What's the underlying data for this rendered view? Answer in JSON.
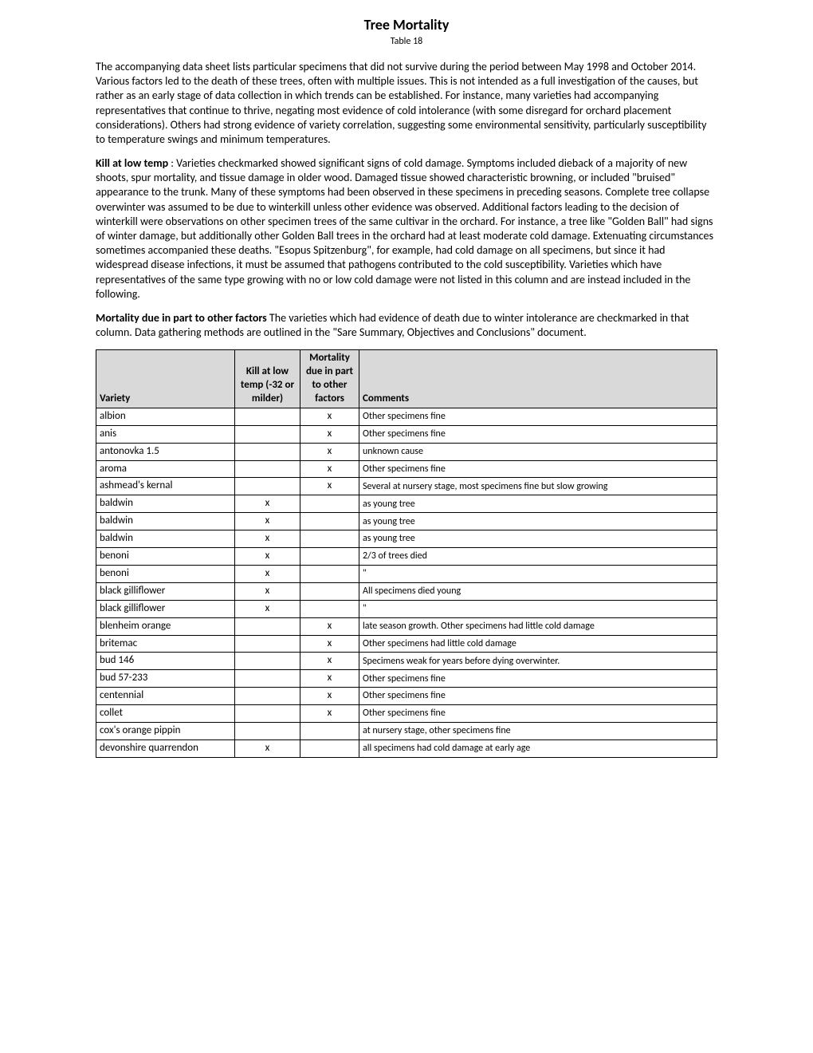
{
  "title": "Tree Mortality",
  "subtitle": "Table 18",
  "para1": "The accompanying data sheet lists particular specimens that did not survive during the period between May 1998 and October 2014. Various factors led to the death of these trees, often with multiple issues. This is not intended as a full investigation of the causes, but rather as an early stage of data collection in which trends can be established. For instance, many varieties had accompanying representatives that continue to thrive, negating most evidence of cold intolerance (with some disregard for orchard placement considerations). Others had strong evidence of variety correlation, suggesting some environmental sensitivity, particularly susceptibility to temperature swings and minimum temperatures.",
  "para2_bold": "Kill at low temp",
  "para2_rest": " : Varieties checkmarked showed significant signs of cold damage. Symptoms included dieback of a majority of new shoots, spur mortality, and tissue damage in older wood. Damaged tissue showed characteristic browning, or included \"bruised\" appearance to the trunk. Many of these symptoms had been observed in these specimens in preceding seasons. Complete tree collapse overwinter was assumed to be due to winterkill unless other evidence was observed.  Additional factors leading to the decision of winterkill were observations on other specimen trees of the same cultivar in the orchard. For instance, a tree like \"Golden Ball\" had signs of winter damage, but additionally other Golden Ball trees in the orchard had at least moderate cold damage. Extenuating circumstances sometimes accompanied these deaths. \"Esopus Spitzenburg\", for example, had cold damage on all specimens, but since it had widespread disease infections, it must be assumed that pathogens contributed to the cold susceptibility. Varieties which have representatives of the same type growing with no or low cold damage were not listed in this column and are instead included in the following.",
  "para3_bold": "Mortality due in part to other factors",
  "para3_rest": "  The varieties which had evidence of death due to winter intolerance are checkmarked in that column.  Data gathering methods are outlined in the \"Sare Summary, Objectives and Conclusions\" document.",
  "table": {
    "headers": {
      "variety": "Variety",
      "kill": "Kill at low temp (-32 or milder)",
      "other": "Mortality due in part to other factors",
      "comments": "Comments"
    },
    "rows": [
      {
        "variety": "albion",
        "kill": "",
        "other": "x",
        "comments": "Other specimens fine"
      },
      {
        "variety": "anis",
        "kill": "",
        "other": "x",
        "comments": "Other specimens fine"
      },
      {
        "variety": "antonovka 1.5",
        "kill": "",
        "other": "x",
        "comments": "unknown cause"
      },
      {
        "variety": "aroma",
        "kill": "",
        "other": "x",
        "comments": "Other specimens fine"
      },
      {
        "variety": "ashmead's kernal",
        "kill": "",
        "other": "x",
        "comments": "Several at nursery stage, most specimens fine but slow growing"
      },
      {
        "variety": "baldwin",
        "kill": "x",
        "other": "",
        "comments": "as young tree"
      },
      {
        "variety": "baldwin",
        "kill": "x",
        "other": "",
        "comments": "as young tree"
      },
      {
        "variety": "baldwin",
        "kill": "x",
        "other": "",
        "comments": "as young tree"
      },
      {
        "variety": "benoni",
        "kill": "x",
        "other": "",
        "comments": "2/3 of trees died"
      },
      {
        "variety": "benoni",
        "kill": "x",
        "other": "",
        "comments": "\""
      },
      {
        "variety": "black gilliflower",
        "kill": "x",
        "other": "",
        "comments": "All specimens died young"
      },
      {
        "variety": "black gilliflower",
        "kill": "x",
        "other": "",
        "comments": "\""
      },
      {
        "variety": "blenheim orange",
        "kill": "",
        "other": "x",
        "comments": "late season growth. Other specimens had little cold damage"
      },
      {
        "variety": "britemac",
        "kill": "",
        "other": "x",
        "comments": "Other specimens had little cold damage"
      },
      {
        "variety": "bud 146",
        "kill": "",
        "other": "x",
        "comments": "Specimens weak for years before dying overwinter."
      },
      {
        "variety": "bud 57-233",
        "kill": "",
        "other": "x",
        "comments": "Other specimens fine"
      },
      {
        "variety": "centennial",
        "kill": "",
        "other": "x",
        "comments": "Other specimens fine"
      },
      {
        "variety": "collet",
        "kill": "",
        "other": "x",
        "comments": "Other specimens fine"
      },
      {
        "variety": "cox's orange pippin",
        "kill": "",
        "other": "",
        "comments": "at nursery stage, other specimens fine"
      },
      {
        "variety": "devonshire quarrendon",
        "kill": "x",
        "other": "",
        "comments": "all specimens had cold damage at early age"
      }
    ]
  }
}
